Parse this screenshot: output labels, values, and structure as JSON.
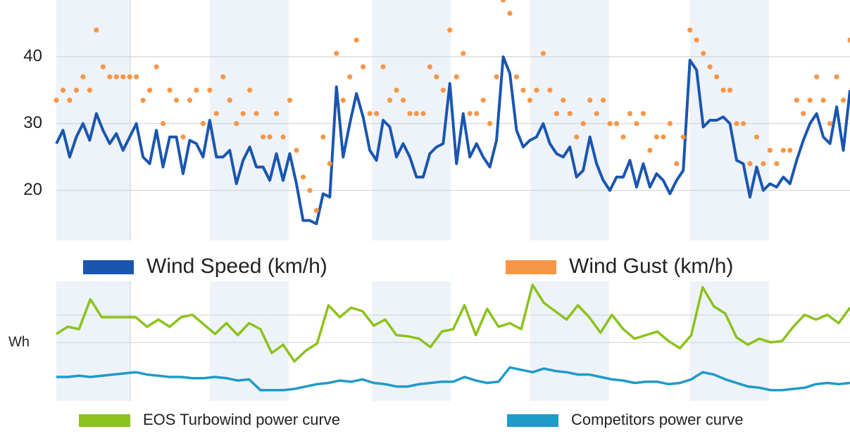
{
  "chart_data": [
    {
      "type": "line",
      "ylim": [
        12.5,
        48.5
      ],
      "yticks": [
        20,
        30,
        40
      ],
      "grid": true,
      "legend": "bottom",
      "series": [
        {
          "name": "Wind Speed (km/h)",
          "color": "#1a56b0",
          "mark": "line",
          "values": [
            27,
            29,
            25,
            28,
            30,
            27.5,
            31.5,
            29,
            27,
            28.5,
            26,
            28,
            30,
            25,
            24,
            29,
            23.5,
            28,
            28,
            22.5,
            27.5,
            27,
            25,
            30.5,
            25,
            25,
            26,
            21,
            24.5,
            26.5,
            23.5,
            23.5,
            21.5,
            25.5,
            21.5,
            25.5,
            21,
            15.5,
            15.5,
            15,
            19.5,
            19,
            35.5,
            25,
            30,
            34.5,
            31,
            26,
            24.5,
            30.5,
            29.5,
            25,
            27,
            25,
            22,
            22,
            25.5,
            26.5,
            27,
            36,
            24,
            31.5,
            25,
            27,
            25,
            23.5,
            27.5,
            40,
            37.5,
            29,
            26.5,
            27.5,
            28,
            30,
            27,
            25.5,
            25,
            26.5,
            22,
            23,
            28,
            24,
            21.5,
            20,
            22,
            22,
            24.5,
            20.5,
            24,
            20.5,
            22.5,
            21.5,
            19.5,
            21.5,
            23,
            39.5,
            38,
            29.5,
            30.5,
            30.5,
            31,
            30,
            24.5,
            24,
            19,
            23.5,
            20,
            21,
            20.5,
            22,
            21,
            24.5,
            27.5,
            30,
            31.5,
            28,
            27,
            32.5,
            26,
            35
          ]
        },
        {
          "name": "Wind Gust (km/h)",
          "color": "#f79646",
          "mark": "dot",
          "values": [
            33.5,
            35,
            33.5,
            35,
            37,
            35,
            44,
            38.5,
            37,
            37,
            37,
            37,
            37,
            33.5,
            35,
            38.5,
            30,
            35,
            33.5,
            28,
            33.5,
            35,
            30,
            35,
            31.5,
            37,
            33.5,
            30,
            31.5,
            35,
            31.5,
            28,
            28,
            31.5,
            28,
            33.5,
            26,
            22,
            20,
            17,
            28,
            24,
            40.5,
            33.5,
            37,
            42.5,
            38.5,
            31.5,
            31.5,
            38.5,
            33.5,
            35,
            33.5,
            31.5,
            31.5,
            31.5,
            38.5,
            37,
            35,
            44,
            37,
            40.5,
            31.5,
            31.5,
            33.5,
            30,
            37,
            48.5,
            46.5,
            37,
            35,
            33.5,
            35,
            40.5,
            35,
            31.5,
            33.5,
            31.5,
            28,
            30,
            33.5,
            31.5,
            33.5,
            30,
            30,
            28,
            31.5,
            30,
            31.5,
            26,
            28,
            28,
            30,
            24,
            28,
            44,
            42.5,
            40.5,
            38.5,
            37,
            35,
            35,
            30,
            30,
            24,
            28,
            24,
            26,
            24,
            26,
            26,
            33.5,
            31.5,
            33.5,
            37,
            33.5,
            30,
            37,
            33.5,
            42.5
          ]
        }
      ]
    },
    {
      "type": "line",
      "y_label": "Wh",
      "ylim": [
        0,
        100
      ],
      "legend": "bottom",
      "series": [
        {
          "name": "EOS Turbowind power curve",
          "color": "#8cc21c",
          "mark": "line",
          "values": [
            56,
            62,
            60,
            85,
            70,
            70,
            70,
            70,
            62,
            68,
            62,
            70,
            72,
            64,
            56,
            65,
            55,
            65,
            60,
            40,
            47,
            33,
            42,
            48,
            80,
            70,
            78,
            75,
            63,
            68,
            55,
            54,
            52,
            45,
            58,
            60,
            80,
            55,
            77,
            62,
            65,
            60,
            97,
            82,
            75,
            68,
            80,
            70,
            57,
            72,
            60,
            52,
            55,
            58,
            50,
            44,
            55,
            95,
            79,
            73,
            53,
            47,
            52,
            49,
            50,
            62,
            72,
            68,
            72,
            65,
            78
          ]
        },
        {
          "name": "Competitors power curve",
          "color": "#1e9bc8",
          "mark": "line",
          "values": [
            20,
            20,
            21,
            20,
            21,
            22,
            23,
            24,
            22,
            21,
            20,
            20,
            19,
            19,
            20,
            19,
            17,
            18,
            9,
            9,
            9,
            10,
            12,
            14,
            15,
            17,
            16,
            18,
            15,
            14,
            12,
            12,
            14,
            15,
            16,
            16,
            20,
            17,
            15,
            16,
            28,
            26,
            24,
            27,
            25,
            24,
            22,
            22,
            20,
            18,
            17,
            15,
            16,
            16,
            14,
            15,
            18,
            24,
            22,
            18,
            15,
            12,
            11,
            9,
            9,
            10,
            11,
            14,
            15,
            14,
            15
          ]
        }
      ]
    }
  ]
}
